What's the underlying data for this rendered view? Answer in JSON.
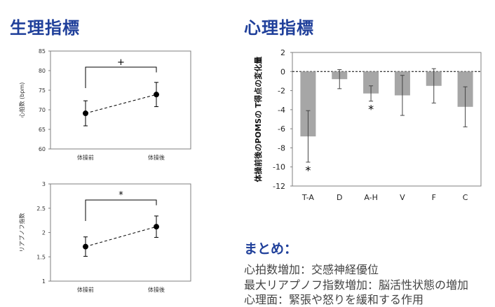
{
  "headings": {
    "physiological": "生理指標",
    "psychological": "心理指標"
  },
  "chart_data": [
    {
      "type": "line",
      "ylabel": "心拍数 (bpm)",
      "categories": [
        "体操前",
        "体操後"
      ],
      "values": [
        69.1,
        73.9
      ],
      "error": [
        3.2,
        3.1
      ],
      "ylim": [
        60,
        85
      ],
      "yticks": [
        60,
        65,
        70,
        75,
        80,
        85
      ],
      "significance": "+",
      "line_style": "dashed",
      "color": "#000000"
    },
    {
      "type": "line",
      "ylabel": "リアプノフ指数",
      "categories": [
        "体操前",
        "体操後"
      ],
      "values": [
        1.71,
        2.12
      ],
      "error": [
        0.2,
        0.22
      ],
      "ylim": [
        1,
        3
      ],
      "yticks": [
        "1",
        "1.5",
        "2",
        "2.5",
        "3"
      ],
      "significance": "*",
      "line_style": "dashed",
      "color": "#000000"
    },
    {
      "type": "bar",
      "ylabel": "体操前後のPOMSの T得点の変化量",
      "categories": [
        "T-A",
        "D",
        "A-H",
        "V",
        "F",
        "C"
      ],
      "values": [
        -6.8,
        -0.8,
        -2.3,
        -2.5,
        -1.5,
        -3.7
      ],
      "error": [
        2.7,
        1.0,
        0.8,
        2.1,
        1.8,
        2.1
      ],
      "ylim": [
        -12,
        2
      ],
      "yticks": [
        2,
        0,
        -2,
        -4,
        -6,
        -8,
        -10,
        -12
      ],
      "significant": [
        "*",
        "",
        "*",
        "",
        "",
        ""
      ],
      "bar_color": "#a6a6a6",
      "grid": false
    }
  ],
  "summary": {
    "title": "まとめ：",
    "lines": [
      "心拍数増加：交感神経優位",
      "最大リアプノフ指数増加：脳活性状態の増加",
      "心理面：緊張や怒りを緩和する作用"
    ]
  }
}
